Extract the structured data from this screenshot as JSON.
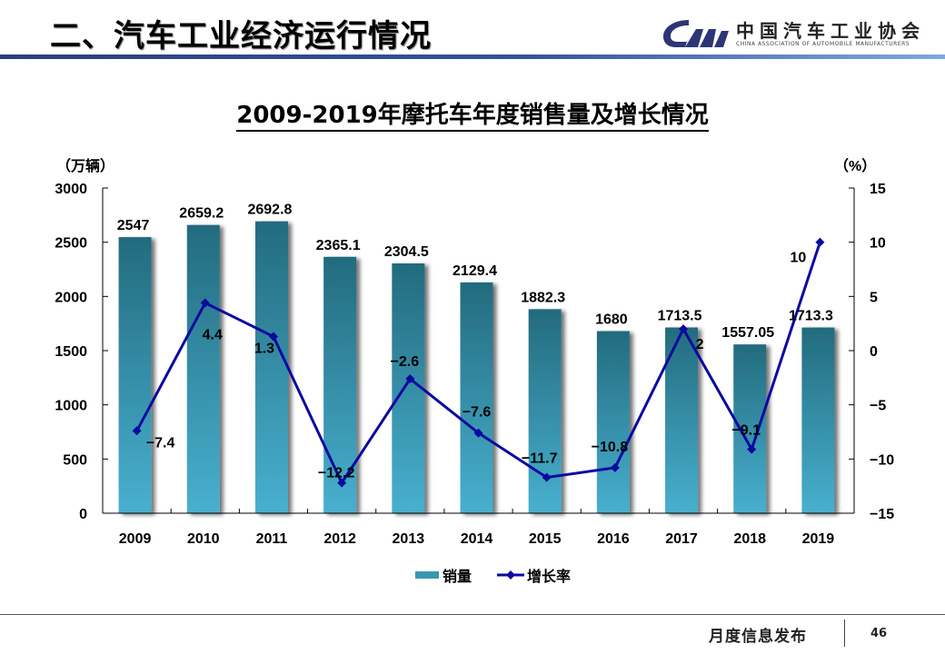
{
  "header": {
    "title": "二、汽车工业经济运行情况",
    "logo": {
      "cn": "中国汽车工业协会",
      "en": "CHINA ASSOCIATION OF AUTOMOBILE MANUFACTURERS",
      "mark": "CAM"
    }
  },
  "footer": {
    "label": "月度信息发布",
    "page": "46"
  },
  "colors": {
    "bar_top": "#236b7e",
    "bar_bottom": "#48b0cf",
    "line": "#0a0aa0",
    "axis": "#000000",
    "header_rule": "#2b3f7e"
  },
  "chart_data": {
    "type": "bar",
    "title": "2009-2019年摩托车年度销售量及增长情况",
    "categories": [
      "2009",
      "2010",
      "2011",
      "2012",
      "2013",
      "2014",
      "2015",
      "2016",
      "2017",
      "2018",
      "2019"
    ],
    "series": [
      {
        "name": "销量",
        "type": "bar",
        "axis": "left",
        "values": [
          2547,
          2659.2,
          2692.8,
          2365.1,
          2304.5,
          2129.4,
          1882.3,
          1680,
          1713.5,
          1557.05,
          1713.3
        ],
        "labels": [
          "2547",
          "2659.2",
          "2692.8",
          "2365.1",
          "2304.5",
          "2129.4",
          "1882.3",
          "1680",
          "1713.5",
          "1557.05",
          "1713.3"
        ]
      },
      {
        "name": "增长率",
        "type": "line",
        "axis": "right",
        "marker": "diamond",
        "values": [
          -7.4,
          4.4,
          1.3,
          -12.2,
          -2.6,
          -7.6,
          -11.7,
          -10.8,
          2,
          -9.1,
          10
        ],
        "labels": [
          "−7.4",
          "4.4",
          "1.3",
          "−12.2",
          "−2.6",
          "−7.6",
          "−11.7",
          "−10.8",
          "2",
          "−9.1",
          "10"
        ]
      }
    ],
    "ylabel_left": "（万辆）",
    "ylabel_right": "（%）",
    "ylim_left": [
      0,
      3000
    ],
    "yticks_left": [
      "0",
      "500",
      "1000",
      "1500",
      "2000",
      "2500",
      "3000"
    ],
    "ylim_right": [
      -15,
      15
    ],
    "yticks_right": [
      "−15",
      "−10",
      "−5",
      "0",
      "5",
      "10",
      "15"
    ],
    "grid": false,
    "legend": {
      "position": "bottom",
      "entries": [
        "销量",
        "增长率"
      ]
    }
  }
}
